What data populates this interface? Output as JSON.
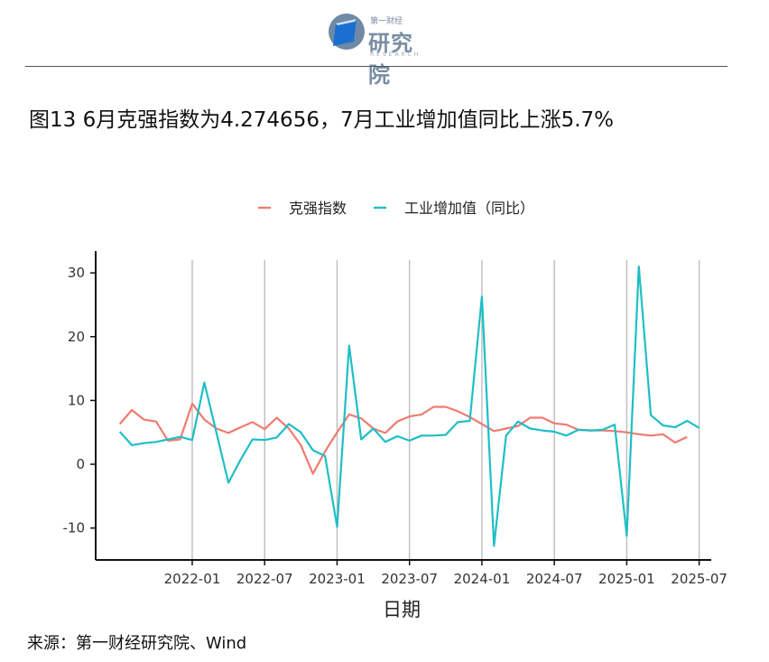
{
  "header": {
    "logo_top": "第一财经",
    "logo_main": "研究院",
    "logo_sub": "RESEARCH"
  },
  "figure_title": "图13 6月克强指数为4.274656，7月工业增加值同比上涨5.7%",
  "source": "来源：第一财经研究院、Wind",
  "colors": {
    "keqiang": "#f07b72",
    "industry": "#1fbec5",
    "grid": "#bdbdbd",
    "axis": "#111111"
  },
  "chart_data": {
    "type": "line",
    "xlabel": "日期",
    "ylabel": "",
    "ylim": [
      -15,
      32
    ],
    "xlim": [
      "2021-05",
      "2025-08"
    ],
    "yticks": [
      -10,
      0,
      10,
      20,
      30
    ],
    "xticks": [
      "2022-01",
      "2022-07",
      "2023-01",
      "2023-07",
      "2024-01",
      "2024-07",
      "2025-01",
      "2025-07"
    ],
    "grid": "vertical",
    "legend_position": "top",
    "series": [
      {
        "name": "克强指数",
        "color": "#f07b72",
        "x": [
          "2021-07",
          "2021-08",
          "2021-09",
          "2021-10",
          "2021-11",
          "2021-12",
          "2022-01",
          "2022-02",
          "2022-03",
          "2022-04",
          "2022-05",
          "2022-06",
          "2022-07",
          "2022-08",
          "2022-09",
          "2022-10",
          "2022-11",
          "2022-12",
          "2023-01",
          "2023-02",
          "2023-03",
          "2023-04",
          "2023-05",
          "2023-06",
          "2023-07",
          "2023-08",
          "2023-09",
          "2023-10",
          "2023-11",
          "2023-12",
          "2024-01",
          "2024-02",
          "2024-03",
          "2024-04",
          "2024-05",
          "2024-06",
          "2024-07",
          "2024-08",
          "2024-09",
          "2024-10",
          "2024-11",
          "2024-12",
          "2025-01",
          "2025-02",
          "2025-03",
          "2025-04",
          "2025-05",
          "2025-06"
        ],
        "values": [
          6.3,
          8.5,
          7.0,
          6.7,
          3.7,
          3.9,
          9.5,
          7.0,
          5.6,
          4.9,
          5.8,
          6.6,
          5.5,
          7.3,
          5.6,
          3.0,
          -1.5,
          2.0,
          5.0,
          7.8,
          7.2,
          5.6,
          4.9,
          6.7,
          7.5,
          7.8,
          9.0,
          9.0,
          8.3,
          7.4,
          6.3,
          5.2,
          5.6,
          6.0,
          7.3,
          7.3,
          6.4,
          6.2,
          5.4,
          5.3,
          5.3,
          5.2,
          5.0,
          4.7,
          4.5,
          4.7,
          3.4,
          4.27
        ]
      },
      {
        "name": "工业增加值（同比）",
        "color": "#1fbec5",
        "x": [
          "2021-07",
          "2021-08",
          "2021-09",
          "2021-10",
          "2021-11",
          "2021-12",
          "2022-01",
          "2022-02",
          "2022-03",
          "2022-04",
          "2022-05",
          "2022-06",
          "2022-07",
          "2022-08",
          "2022-09",
          "2022-10",
          "2022-11",
          "2022-12",
          "2023-01",
          "2023-02",
          "2023-03",
          "2023-04",
          "2023-05",
          "2023-06",
          "2023-07",
          "2023-08",
          "2023-09",
          "2023-10",
          "2023-11",
          "2023-12",
          "2024-01",
          "2024-02",
          "2024-03",
          "2024-04",
          "2024-05",
          "2024-06",
          "2024-07",
          "2024-08",
          "2024-09",
          "2024-10",
          "2024-11",
          "2024-12",
          "2025-01",
          "2025-02",
          "2025-03",
          "2025-04",
          "2025-05",
          "2025-06",
          "2025-07"
        ],
        "values": [
          5.1,
          3.0,
          3.3,
          3.5,
          3.9,
          4.3,
          3.8,
          12.8,
          5.0,
          -2.9,
          0.7,
          3.9,
          3.8,
          4.2,
          6.3,
          5.0,
          2.2,
          1.3,
          -9.8,
          18.6,
          3.9,
          5.6,
          3.5,
          4.4,
          3.7,
          4.5,
          4.5,
          4.6,
          6.6,
          6.8,
          26.3,
          -12.8,
          4.5,
          6.7,
          5.6,
          5.3,
          5.1,
          4.5,
          5.4,
          5.3,
          5.4,
          6.2,
          -11.2,
          31.0,
          7.7,
          6.1,
          5.8,
          6.8,
          5.7
        ]
      }
    ]
  }
}
